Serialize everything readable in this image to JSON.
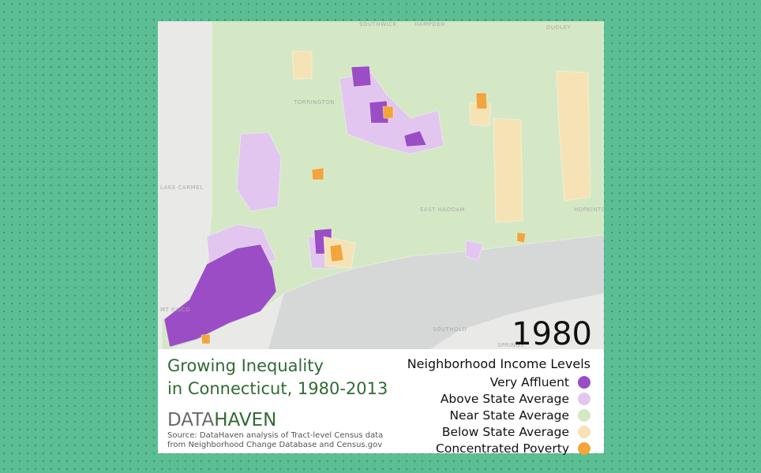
{
  "map": {
    "year": "1980",
    "title_lines": [
      "Growing Inequality",
      "in Connecticut, 1980-2013"
    ],
    "logo": {
      "part1": "DATA",
      "part2": "HAVEN"
    },
    "source_lines": [
      "Source: DataHaven analysis of Tract-level Census data",
      "from Neighborhood Change Database and Census.gov"
    ],
    "legend": {
      "title": "Neighborhood Income Levels",
      "items": [
        {
          "label": "Very Affluent",
          "color": "#9b4dc6"
        },
        {
          "label": "Above State Average",
          "color": "#e2c6f0"
        },
        {
          "label": "Near State Average",
          "color": "#d5e8c6"
        },
        {
          "label": "Below State Average",
          "color": "#f6e3b5"
        },
        {
          "label": "Concentrated Poverty",
          "color": "#f2a53c"
        }
      ]
    },
    "place_labels": [
      "SOUTHWICK",
      "HAMPDEN",
      "DUDLEY",
      "TORRINGTON",
      "LAKE CARMEL",
      "MT KISCO",
      "EAST HADDAM",
      "HOPKINTON",
      "SOUTHOLD",
      "SPRINGS"
    ]
  }
}
